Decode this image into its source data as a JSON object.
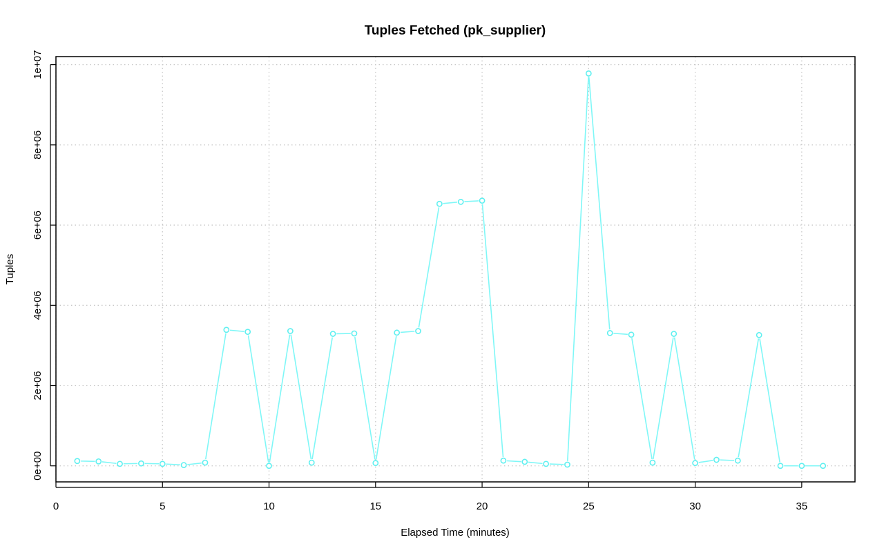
{
  "chart_data": {
    "type": "line",
    "title": "Tuples Fetched (pk_supplier)",
    "xlabel": "Elapsed Time (minutes)",
    "ylabel": "Tuples",
    "xlim": [
      0,
      37.5
    ],
    "ylim": [
      -400000,
      10200000
    ],
    "x_ticks": [
      0,
      5,
      10,
      15,
      20,
      25,
      30,
      35
    ],
    "x_tick_labels": [
      "0",
      "5",
      "10",
      "15",
      "20",
      "25",
      "30",
      "35"
    ],
    "y_ticks": [
      0,
      2000000,
      4000000,
      6000000,
      8000000,
      10000000
    ],
    "y_tick_labels": [
      "0e+00",
      "2e+06",
      "4e+06",
      "6e+06",
      "8e+06",
      "1e+07"
    ],
    "grid": true,
    "series_color": "#7ff7f7",
    "series": [
      {
        "x": [
          1,
          2,
          3,
          4,
          5,
          6,
          7,
          8,
          9,
          10,
          11,
          12,
          13,
          14,
          15,
          16,
          17,
          18,
          19,
          20,
          21,
          22,
          23,
          24,
          25,
          26,
          27,
          28,
          29,
          30,
          31,
          32,
          33,
          34,
          35,
          36
        ],
        "values": [
          120000,
          110000,
          50000,
          60000,
          50000,
          20000,
          80000,
          3390000,
          3340000,
          0,
          3360000,
          80000,
          3290000,
          3300000,
          70000,
          3320000,
          3360000,
          6530000,
          6580000,
          6610000,
          130000,
          100000,
          50000,
          30000,
          9780000,
          3310000,
          3270000,
          80000,
          3290000,
          70000,
          150000,
          130000,
          3260000,
          0,
          0,
          0
        ]
      }
    ]
  }
}
